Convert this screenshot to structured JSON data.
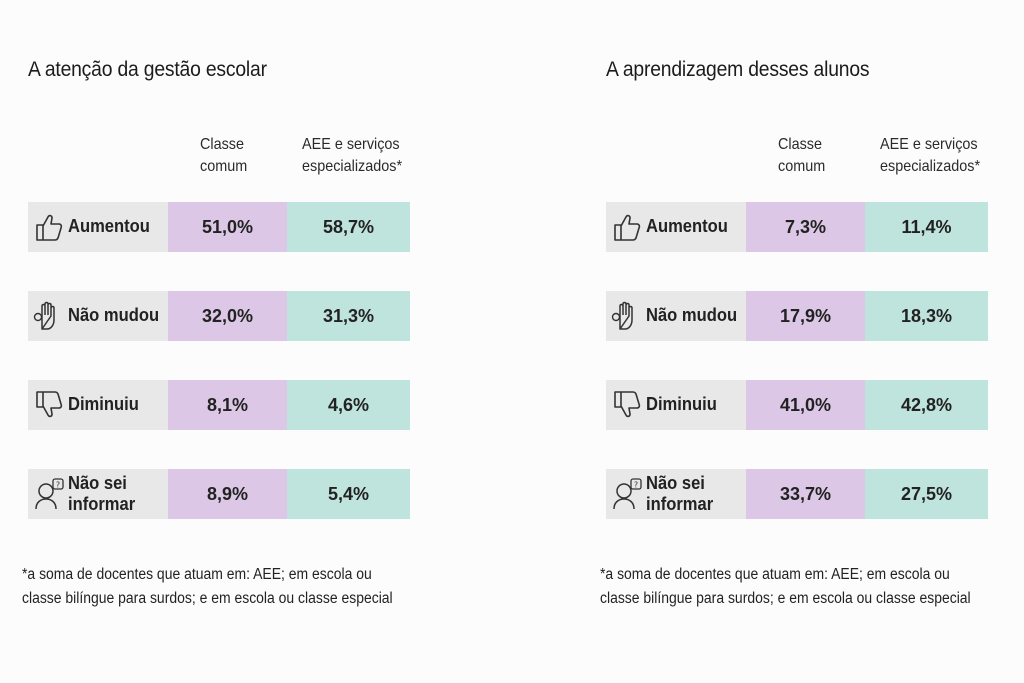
{
  "chart_data": [
    {
      "type": "table",
      "title": "A atenção da gestão escolar",
      "columns": [
        "Classe\ncomum",
        "AEE e serviços\nespecializados*"
      ],
      "rows": [
        {
          "label": "Aumentou",
          "icon": "thumbs-up-icon",
          "values": [
            "51,0%",
            "58,7%"
          ]
        },
        {
          "label": "Não mudou",
          "icon": "hand-raised-icon",
          "values": [
            "32,0%",
            "31,3%"
          ]
        },
        {
          "label": "Diminuiu",
          "icon": "thumbs-down-icon",
          "values": [
            "8,1%",
            "4,6%"
          ]
        },
        {
          "label": "Não sei\ninformar",
          "icon": "person-question-icon",
          "values": [
            "8,9%",
            "5,4%"
          ]
        }
      ],
      "footnote": "*a soma de docentes que atuam em: AEE; em escola ou classe bilíngue para surdos; e em escola ou classe especial"
    },
    {
      "type": "table",
      "title": "A aprendizagem desses alunos",
      "columns": [
        "Classe\ncomum",
        "AEE e serviços\nespecializados*"
      ],
      "rows": [
        {
          "label": "Aumentou",
          "icon": "thumbs-up-icon",
          "values": [
            "7,3%",
            "11,4%"
          ]
        },
        {
          "label": "Não mudou",
          "icon": "hand-raised-icon",
          "values": [
            "17,9%",
            "18,3%"
          ]
        },
        {
          "label": "Diminuiu",
          "icon": "thumbs-down-icon",
          "values": [
            "41,0%",
            "42,8%"
          ]
        },
        {
          "label": "Não sei\ninformar",
          "icon": "person-question-icon",
          "values": [
            "33,7%",
            "27,5%"
          ]
        }
      ],
      "footnote": "*a soma de docentes que atuam em: AEE; em escola ou classe bilíngue para surdos; e em escola ou classe especial"
    }
  ],
  "colors": {
    "label_bg": "#e8e8e8",
    "classe_comum": "#dcc8e6",
    "aee": "#bfe3dd"
  }
}
